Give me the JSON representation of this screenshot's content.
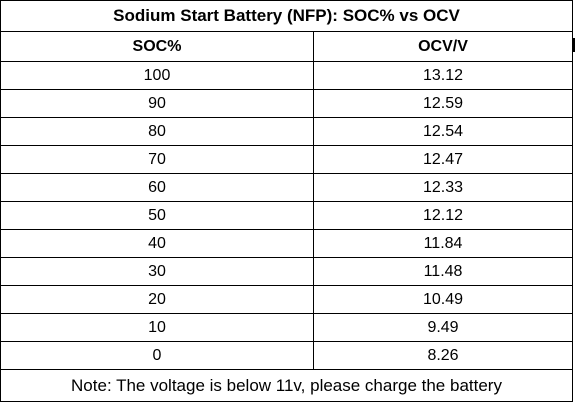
{
  "table": {
    "title": "Sodium Start Battery (NFP): SOC% vs OCV",
    "headers": [
      "SOC%",
      "OCV/V"
    ],
    "rows": [
      [
        "100",
        "13.12"
      ],
      [
        "90",
        "12.59"
      ],
      [
        "80",
        "12.54"
      ],
      [
        "70",
        "12.47"
      ],
      [
        "60",
        "12.33"
      ],
      [
        "50",
        "12.12"
      ],
      [
        "40",
        "11.84"
      ],
      [
        "30",
        "11.48"
      ],
      [
        "20",
        "10.49"
      ],
      [
        "10",
        "9.49"
      ],
      [
        "0",
        "8.26"
      ]
    ],
    "note": "Note: The voltage is below 11v, please charge the battery"
  }
}
